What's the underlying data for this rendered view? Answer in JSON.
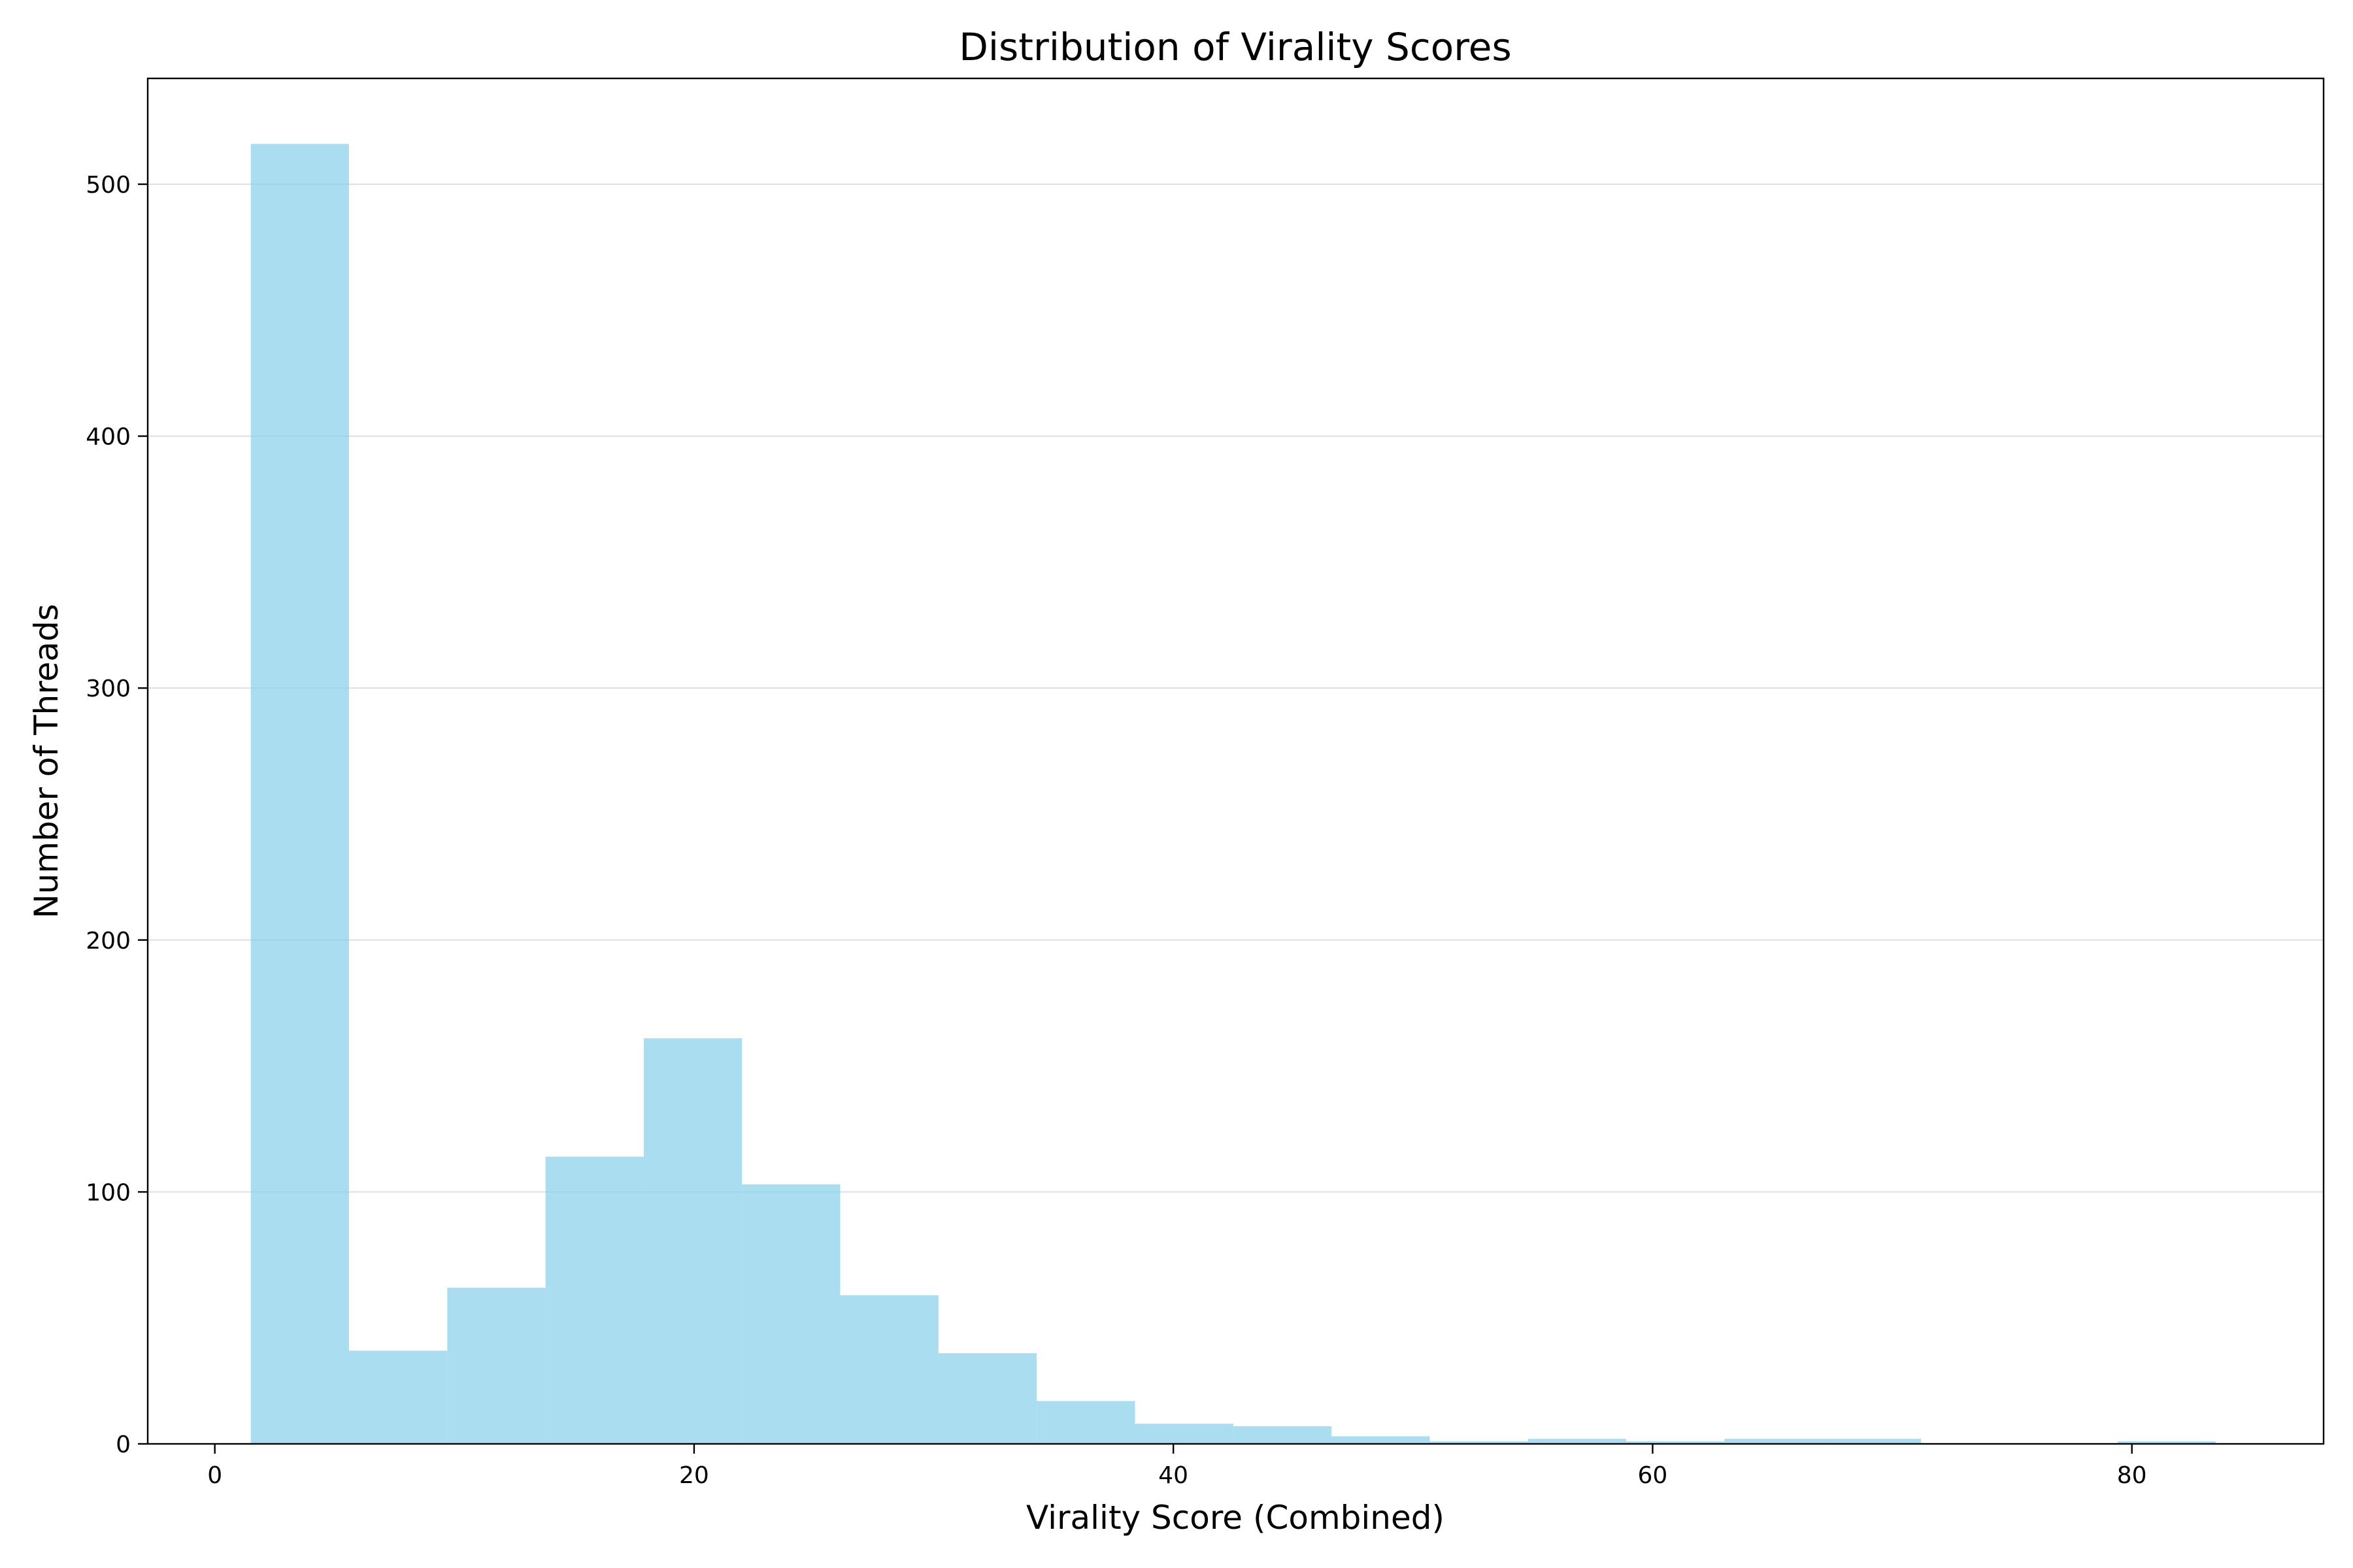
{
  "chart_data": {
    "type": "bar",
    "subtype": "histogram",
    "title": "Distribution of Virality Scores",
    "xlabel": "Virality Score (Combined)",
    "ylabel": "Number of Threads",
    "xlim": [
      -2.8,
      88
    ],
    "ylim": [
      0,
      542
    ],
    "xticks": [
      0,
      20,
      40,
      60,
      80
    ],
    "yticks": [
      0,
      100,
      200,
      300,
      400,
      500
    ],
    "grid": {
      "axis": "y",
      "visible": true
    },
    "color": "#87ceeb",
    "bin_edges": [
      1.5,
      5.6,
      9.7,
      13.8,
      17.9,
      22.0,
      26.1,
      30.2,
      34.3,
      38.4,
      42.5,
      46.6,
      50.7,
      54.8,
      58.9,
      63.0,
      67.1,
      71.2,
      75.3,
      79.4,
      83.5
    ],
    "values": [
      516,
      37,
      62,
      114,
      161,
      103,
      59,
      36,
      17,
      8,
      7,
      3,
      1,
      2,
      1,
      2,
      2,
      0,
      0,
      1
    ]
  }
}
